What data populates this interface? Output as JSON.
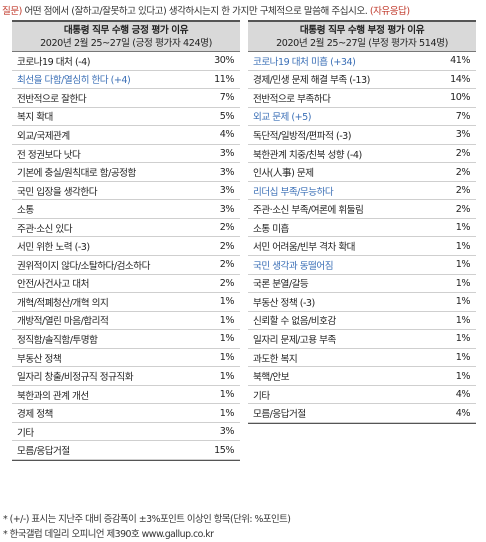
{
  "question": {
    "tag": "질문)",
    "text": "어떤 점에서 (잘하고/잘못하고 있다고) 생각하시는지 한 가지만 구체적으로 말씀해 주십시오.",
    "end": "(자유응답)"
  },
  "positive": {
    "title": "대통령 직무 수행 긍정 평가 이유",
    "subtitle": "2020년 2월 25~27일 (긍정 평가자 424명)",
    "rows": [
      {
        "label": "코로나19 대처 (-4)",
        "value": "30%",
        "highlight": false
      },
      {
        "label": "최선을 다함/열심히 한다 (+4)",
        "value": "11%",
        "highlight": true
      },
      {
        "label": "전반적으로 잘한다",
        "value": "7%",
        "highlight": false
      },
      {
        "label": "복지 확대",
        "value": "5%",
        "highlight": false
      },
      {
        "label": "외교/국제관계",
        "value": "4%",
        "highlight": false
      },
      {
        "label": "전 정권보다 낫다",
        "value": "3%",
        "highlight": false
      },
      {
        "label": "기본에 충실/원칙대로 함/공정함",
        "value": "3%",
        "highlight": false
      },
      {
        "label": "국민 입장을 생각한다",
        "value": "3%",
        "highlight": false
      },
      {
        "label": "소통",
        "value": "3%",
        "highlight": false
      },
      {
        "label": "주관·소신 있다",
        "value": "2%",
        "highlight": false
      },
      {
        "label": "서민 위한 노력 (-3)",
        "value": "2%",
        "highlight": false
      },
      {
        "label": "권위적이지 않다/소탈하다/검소하다",
        "value": "2%",
        "highlight": false
      },
      {
        "label": "안전/사건사고 대처",
        "value": "2%",
        "highlight": false
      },
      {
        "label": "개혁/적폐청산/개혁 의지",
        "value": "1%",
        "highlight": false
      },
      {
        "label": "개방적/열린 마음/합리적",
        "value": "1%",
        "highlight": false
      },
      {
        "label": "정직함/솔직함/투명함",
        "value": "1%",
        "highlight": false
      },
      {
        "label": "부동산 정책",
        "value": "1%",
        "highlight": false
      },
      {
        "label": "일자리 창출/비정규직 정규직화",
        "value": "1%",
        "highlight": false
      },
      {
        "label": "북한과의 관계 개선",
        "value": "1%",
        "highlight": false
      },
      {
        "label": "경제 정책",
        "value": "1%",
        "highlight": false
      },
      {
        "label": "기타",
        "value": "3%",
        "highlight": false
      },
      {
        "label": "모름/응답거절",
        "value": "15%",
        "highlight": false
      }
    ]
  },
  "negative": {
    "title": "대통령 직무 수행 부정 평가 이유",
    "subtitle": "2020년 2월 25~27일 (부정 평가자 514명)",
    "rows": [
      {
        "label": "코로나19 대처 미흡 (+34)",
        "value": "41%",
        "highlight": true
      },
      {
        "label": "경제/민생 문제 해결 부족 (-13)",
        "value": "14%",
        "highlight": false
      },
      {
        "label": "전반적으로 부족하다",
        "value": "10%",
        "highlight": false
      },
      {
        "label": "외교 문제 (+5)",
        "value": "7%",
        "highlight": true
      },
      {
        "label": "독단적/일방적/편파적 (-3)",
        "value": "3%",
        "highlight": false
      },
      {
        "label": "북한관계 치중/친북 성향 (-4)",
        "value": "2%",
        "highlight": false
      },
      {
        "label": "인사(人事) 문제",
        "value": "2%",
        "highlight": false
      },
      {
        "label": "리더십 부족/무능하다",
        "value": "2%",
        "highlight": true
      },
      {
        "label": "주관·소신 부족/여론에 휘둘림",
        "value": "2%",
        "highlight": false
      },
      {
        "label": "소통 미흡",
        "value": "1%",
        "highlight": false
      },
      {
        "label": "서민 어려움/빈부 격차 확대",
        "value": "1%",
        "highlight": false
      },
      {
        "label": "국민 생각과 동떨어짐",
        "value": "1%",
        "highlight": true
      },
      {
        "label": "국론 분열/갈등",
        "value": "1%",
        "highlight": false
      },
      {
        "label": "부동산 정책 (-3)",
        "value": "1%",
        "highlight": false
      },
      {
        "label": "신뢰할 수 없음/비호감",
        "value": "1%",
        "highlight": false
      },
      {
        "label": "일자리 문제/고용 부족",
        "value": "1%",
        "highlight": false
      },
      {
        "label": "과도한 복지",
        "value": "1%",
        "highlight": false
      },
      {
        "label": "북핵/안보",
        "value": "1%",
        "highlight": false
      },
      {
        "label": "기타",
        "value": "4%",
        "highlight": false
      },
      {
        "label": "모름/응답거절",
        "value": "4%",
        "highlight": false
      }
    ]
  },
  "footnotes": {
    "note1": "* (+/-) 표시는 지난주 대비 증감폭이 ±3%포인트 이상인 항목(단위: %포인트)",
    "note2": "* 한국갤럽 데일리 오피니언 제390호 www.gallup.co.kr"
  }
}
